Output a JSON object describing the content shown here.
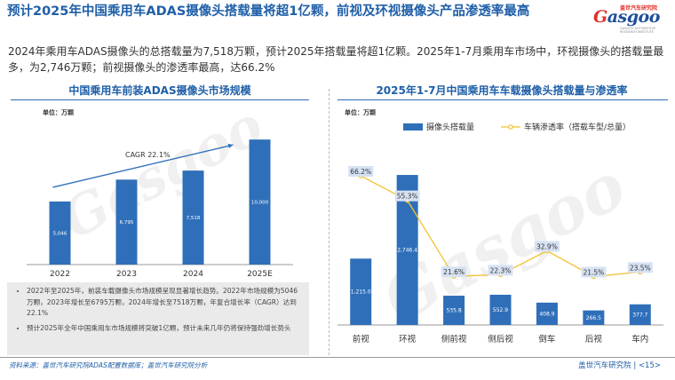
{
  "title": "预计2025年中国乘用车ADAS摄像头搭载量将超1亿颗，前视及环视摄像头产品渗透率最高",
  "logo": {
    "word_pre": "",
    "word_g": "G",
    "word_rest": "asgoo",
    "cn": "盖世汽车研究院",
    "sub": "GASGOO AUTOMOTIVE RESEARCH INSTITUTE"
  },
  "summary": "2024年乘用车ADAS摄像头的总搭载量为7,518万颗，预计2025年搭载量将超1亿颗。2025年1-7月乘用车市场中，环视摄像头的搭载量最多，为2,746万颗；前视摄像头的渗透率最高，达66.2%",
  "left_panel_title": "中国乘用车前装ADAS摄像头市场规模",
  "right_panel_title": "2025年1-7月中国乘用车车载摄像头搭载量与渗透率",
  "notes": [
    "2022年至2025年，前装车载摄像头市场规模呈现显著增长趋势。2022年市场规模为5046万颗，2023年增长至6795万颗，2024年增长至7518万颗，年复合增长率（CAGR）达到22.1%",
    "预计2025年全年中国乘用车市场规模将突破1亿颗，预计未来几年仍将保持强劲增长势头"
  ],
  "watermark": "Gasgoo",
  "footer": {
    "source": "资料来源：盖世汽车研究院ADAS配置数据库；盖世汽车研究院分析",
    "brand": "盖世汽车研究院",
    "page": "<15>"
  },
  "chart_data": [
    {
      "type": "bar",
      "title": "中国乘用车前装ADAS摄像头市场规模",
      "unit_label": "单位：万颗",
      "categories": [
        "2022",
        "2023",
        "2024",
        "2025E"
      ],
      "values": [
        5046,
        6795,
        7518,
        10000
      ],
      "value_labels": [
        "5,046",
        "6,795",
        "7,518",
        "10,000"
      ],
      "annotation": "CAGR 22.1%",
      "ylim": [
        0,
        12000
      ],
      "colors": {
        "bar": "#2f6fba"
      },
      "grid": false
    },
    {
      "type": "bar",
      "title": "2025年1-7月中国乘用车车载摄像头搭载量与渗透率",
      "unit_label": "单位：万颗",
      "categories": [
        "前视",
        "环视",
        "侧前视",
        "侧后视",
        "倒车",
        "后视",
        "车内"
      ],
      "series": [
        {
          "name": "摄像头搭载量",
          "type": "bar",
          "values": [
            1215.0,
            2746.4,
            535.8,
            552.9,
            408.9,
            266.5,
            377.7
          ],
          "labels": [
            "1,215.0",
            "2,746.4",
            "535.8",
            "552.9",
            "408.9",
            "266.5",
            "377.7"
          ],
          "color": "#2f6fba"
        },
        {
          "name": "车辆渗透率（搭载车型/总量）",
          "type": "line",
          "values": [
            66.2,
            55.3,
            21.6,
            22.3,
            32.9,
            21.5,
            23.5
          ],
          "labels": [
            "66.2%",
            "55.3%",
            "21.6%",
            "22.3%",
            "32.9%",
            "21.5%",
            "23.5%"
          ],
          "color": "#f2c230",
          "axis": "secondary"
        }
      ],
      "ylim": [
        0,
        3300
      ],
      "y2lim": [
        0,
        80
      ],
      "legend": "top",
      "grid": false
    }
  ]
}
